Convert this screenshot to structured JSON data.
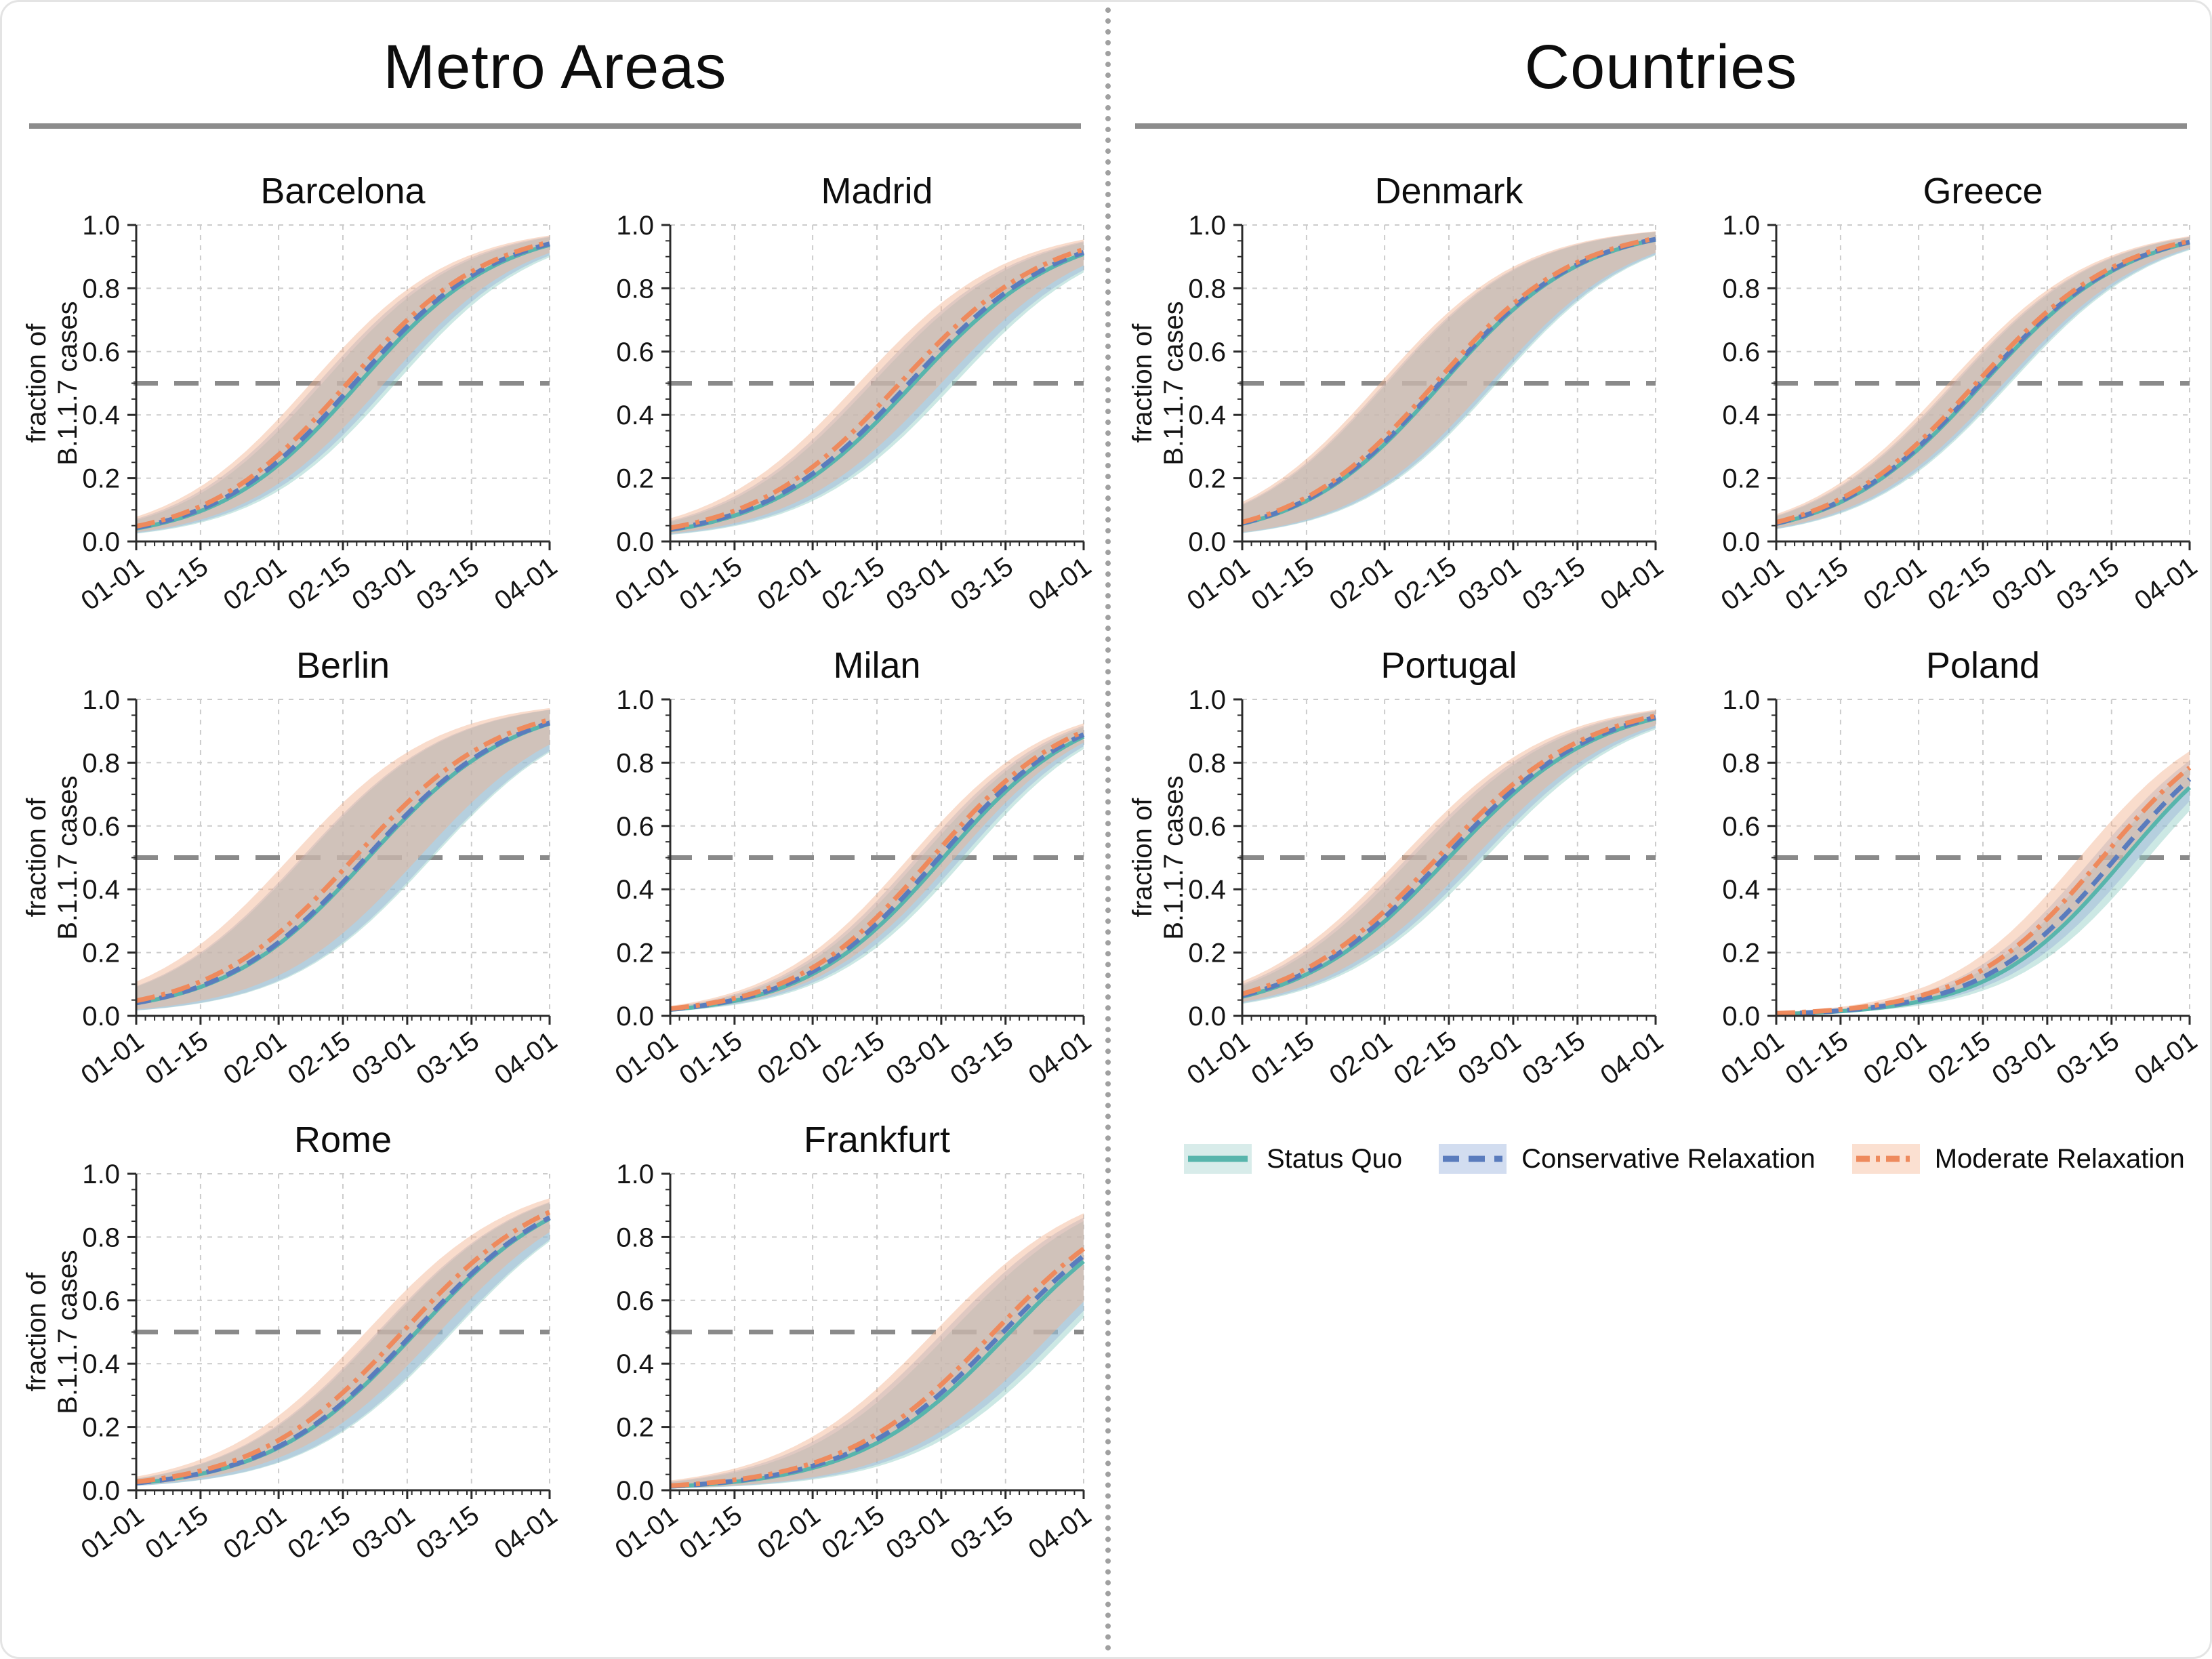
{
  "sections": [
    {
      "title": "Metro Areas"
    },
    {
      "title": "Countries"
    }
  ],
  "legend": [
    {
      "name": "Status Quo",
      "line_color": "#58b5ac",
      "band_color": "#d8ecea",
      "band_plot_color": "#8fcbc3",
      "style": "solid"
    },
    {
      "name": "Conservative Relaxation",
      "line_color": "#5a7cbd",
      "band_color": "#d2ddf0",
      "band_plot_color": "#9ab1d8",
      "style": "dashed"
    },
    {
      "name": "Moderate Relaxation",
      "line_color": "#ee8a5d",
      "band_color": "#fbe0d1",
      "band_plot_color": "#f2b28e",
      "style": "dashdot"
    }
  ],
  "axes": {
    "ylabel_lines": [
      "fraction of",
      "B.1.1.7 cases"
    ],
    "x_tick_labels": [
      "01-01",
      "01-15",
      "02-01",
      "02-15",
      "03-01",
      "03-15",
      "04-01"
    ],
    "x_tick_days": [
      0,
      14,
      31,
      45,
      59,
      73,
      90
    ],
    "x_range_days": [
      0,
      90
    ],
    "y_tick_labels": [
      "0.0",
      "0.2",
      "0.4",
      "0.6",
      "0.8",
      "1.0"
    ],
    "y_ticks": [
      0,
      0.2,
      0.4,
      0.6,
      0.8,
      1.0
    ],
    "ylim": [
      0,
      1
    ],
    "grid": true,
    "threshold_value": 0.5,
    "threshold_line_color": "#8a8a8a",
    "grid_color": "#cccccc",
    "spine_color": "#2b2b2b"
  },
  "chart_data": [
    {
      "id": "barcelona",
      "title": "Barcelona",
      "type": "line",
      "section": 0,
      "has_ylabel": true,
      "x": [
        "01-01",
        "01-15",
        "02-01",
        "02-15",
        "03-01",
        "03-15",
        "04-01"
      ],
      "band_delta_days": 8,
      "series": [
        {
          "name": "Status Quo",
          "k": 0.065,
          "t50": 48.5,
          "values_at_ticks": [
            0.04,
            0.1,
            0.24,
            0.44,
            0.66,
            0.83,
            0.94
          ]
        },
        {
          "name": "Conservative Relaxation",
          "k": 0.065,
          "t50": 47.5,
          "values_at_ticks": [
            0.04,
            0.1,
            0.26,
            0.46,
            0.68,
            0.84,
            0.94
          ]
        },
        {
          "name": "Moderate Relaxation",
          "k": 0.065,
          "t50": 46.0,
          "values_at_ticks": [
            0.05,
            0.11,
            0.27,
            0.48,
            0.7,
            0.85,
            0.95
          ]
        }
      ]
    },
    {
      "id": "madrid",
      "title": "Madrid",
      "type": "line",
      "section": 0,
      "has_ylabel": false,
      "x": [
        "01-01",
        "01-15",
        "02-01",
        "02-15",
        "03-01",
        "03-15",
        "04-01"
      ],
      "band_delta_days": 9,
      "series": [
        {
          "name": "Status Quo",
          "k": 0.062,
          "t50": 53.0,
          "values_at_ticks": [
            0.04,
            0.08,
            0.2,
            0.38,
            0.59,
            0.78,
            0.91
          ]
        },
        {
          "name": "Conservative Relaxation",
          "k": 0.062,
          "t50": 52.0,
          "values_at_ticks": [
            0.04,
            0.09,
            0.21,
            0.39,
            0.61,
            0.79,
            0.91
          ]
        },
        {
          "name": "Moderate Relaxation",
          "k": 0.062,
          "t50": 50.0,
          "values_at_ticks": [
            0.04,
            0.1,
            0.24,
            0.42,
            0.64,
            0.81,
            0.92
          ]
        }
      ]
    },
    {
      "id": "berlin",
      "title": "Berlin",
      "type": "line",
      "section": 0,
      "has_ylabel": true,
      "x": [
        "01-01",
        "01-15",
        "02-01",
        "02-15",
        "03-01",
        "03-15",
        "04-01"
      ],
      "band_delta_days": 14,
      "series": [
        {
          "name": "Status Quo",
          "k": 0.063,
          "t50": 50.5,
          "values_at_ticks": [
            0.04,
            0.09,
            0.23,
            0.41,
            0.63,
            0.8,
            0.92
          ]
        },
        {
          "name": "Conservative Relaxation",
          "k": 0.063,
          "t50": 50.0,
          "values_at_ticks": [
            0.04,
            0.09,
            0.23,
            0.42,
            0.64,
            0.81,
            0.93
          ]
        },
        {
          "name": "Moderate Relaxation",
          "k": 0.063,
          "t50": 47.5,
          "values_at_ticks": [
            0.05,
            0.11,
            0.26,
            0.46,
            0.67,
            0.83,
            0.93
          ]
        }
      ]
    },
    {
      "id": "milan",
      "title": "Milan",
      "type": "line",
      "section": 0,
      "has_ylabel": false,
      "x": [
        "01-01",
        "01-15",
        "02-01",
        "02-15",
        "03-01",
        "03-15",
        "04-01"
      ],
      "band_delta_days": 5,
      "series": [
        {
          "name": "Status Quo",
          "k": 0.066,
          "t50": 59.5,
          "values_at_ticks": [
            0.02,
            0.05,
            0.13,
            0.28,
            0.49,
            0.71,
            0.88
          ]
        },
        {
          "name": "Conservative Relaxation",
          "k": 0.066,
          "t50": 58.5,
          "values_at_ticks": [
            0.02,
            0.05,
            0.14,
            0.29,
            0.51,
            0.72,
            0.89
          ]
        },
        {
          "name": "Moderate Relaxation",
          "k": 0.066,
          "t50": 57.0,
          "values_at_ticks": [
            0.02,
            0.06,
            0.15,
            0.31,
            0.53,
            0.74,
            0.9
          ]
        }
      ]
    },
    {
      "id": "rome",
      "title": "Rome",
      "type": "line",
      "section": 0,
      "has_ylabel": true,
      "x": [
        "01-01",
        "01-15",
        "02-01",
        "02-15",
        "03-01",
        "03-15",
        "04-01"
      ],
      "band_delta_days": 8,
      "series": [
        {
          "name": "Status Quo",
          "k": 0.062,
          "t50": 61.0,
          "values_at_ticks": [
            0.02,
            0.05,
            0.13,
            0.27,
            0.47,
            0.68,
            0.85
          ]
        },
        {
          "name": "Conservative Relaxation",
          "k": 0.062,
          "t50": 60.5,
          "values_at_ticks": [
            0.02,
            0.05,
            0.14,
            0.28,
            0.48,
            0.68,
            0.86
          ]
        },
        {
          "name": "Moderate Relaxation",
          "k": 0.062,
          "t50": 58.0,
          "values_at_ticks": [
            0.03,
            0.06,
            0.16,
            0.31,
            0.52,
            0.72,
            0.88
          ]
        }
      ]
    },
    {
      "id": "frankfurt",
      "title": "Frankfurt",
      "type": "line",
      "section": 0,
      "has_ylabel": false,
      "x": [
        "01-01",
        "01-15",
        "02-01",
        "02-15",
        "03-01",
        "03-15",
        "04-01"
      ],
      "band_delta_days": 13,
      "series": [
        {
          "name": "Status Quo",
          "k": 0.06,
          "t50": 74.0,
          "values_at_ticks": [
            0.01,
            0.03,
            0.07,
            0.15,
            0.29,
            0.49,
            0.72
          ]
        },
        {
          "name": "Conservative Relaxation",
          "k": 0.06,
          "t50": 72.5,
          "values_at_ticks": [
            0.01,
            0.03,
            0.08,
            0.16,
            0.31,
            0.51,
            0.74
          ]
        },
        {
          "name": "Moderate Relaxation",
          "k": 0.06,
          "t50": 70.5,
          "values_at_ticks": [
            0.01,
            0.03,
            0.09,
            0.18,
            0.33,
            0.54,
            0.76
          ]
        }
      ]
    },
    {
      "id": "denmark",
      "title": "Denmark",
      "type": "line",
      "section": 1,
      "has_ylabel": true,
      "x": [
        "01-01",
        "01-15",
        "02-01",
        "02-15",
        "03-01",
        "03-15",
        "04-01"
      ],
      "band_delta_days": 12,
      "series": [
        {
          "name": "Status Quo",
          "k": 0.065,
          "t50": 43.5,
          "values_at_ticks": [
            0.06,
            0.13,
            0.31,
            0.52,
            0.73,
            0.87,
            0.95
          ]
        },
        {
          "name": "Conservative Relaxation",
          "k": 0.065,
          "t50": 43.0,
          "values_at_ticks": [
            0.06,
            0.13,
            0.31,
            0.53,
            0.74,
            0.88,
            0.95
          ]
        },
        {
          "name": "Moderate Relaxation",
          "k": 0.065,
          "t50": 42.0,
          "values_at_ticks": [
            0.06,
            0.14,
            0.33,
            0.55,
            0.75,
            0.88,
            0.96
          ]
        }
      ]
    },
    {
      "id": "greece",
      "title": "Greece",
      "type": "line",
      "section": 1,
      "has_ylabel": false,
      "x": [
        "01-01",
        "01-15",
        "02-01",
        "02-15",
        "03-01",
        "03-15",
        "04-01"
      ],
      "band_delta_days": 6,
      "series": [
        {
          "name": "Status Quo",
          "k": 0.063,
          "t50": 45.0,
          "values_at_ticks": [
            0.06,
            0.12,
            0.29,
            0.5,
            0.71,
            0.85,
            0.94
          ]
        },
        {
          "name": "Conservative Relaxation",
          "k": 0.063,
          "t50": 44.5,
          "values_at_ticks": [
            0.06,
            0.13,
            0.3,
            0.51,
            0.71,
            0.86,
            0.95
          ]
        },
        {
          "name": "Moderate Relaxation",
          "k": 0.063,
          "t50": 43.5,
          "values_at_ticks": [
            0.06,
            0.13,
            0.31,
            0.52,
            0.73,
            0.87,
            0.95
          ]
        }
      ]
    },
    {
      "id": "portugal",
      "title": "Portugal",
      "type": "line",
      "section": 1,
      "has_ylabel": true,
      "x": [
        "01-01",
        "01-15",
        "02-01",
        "02-15",
        "03-01",
        "03-15",
        "04-01"
      ],
      "band_delta_days": 8,
      "series": [
        {
          "name": "Status Quo",
          "k": 0.061,
          "t50": 45.0,
          "values_at_ticks": [
            0.06,
            0.13,
            0.3,
            0.5,
            0.7,
            0.85,
            0.94
          ]
        },
        {
          "name": "Conservative Relaxation",
          "k": 0.061,
          "t50": 44.0,
          "values_at_ticks": [
            0.06,
            0.14,
            0.31,
            0.52,
            0.71,
            0.85,
            0.94
          ]
        },
        {
          "name": "Moderate Relaxation",
          "k": 0.061,
          "t50": 42.5,
          "values_at_ticks": [
            0.07,
            0.15,
            0.33,
            0.54,
            0.73,
            0.87,
            0.95
          ]
        }
      ]
    },
    {
      "id": "poland",
      "title": "Poland",
      "type": "line",
      "section": 1,
      "has_ylabel": false,
      "x": [
        "01-01",
        "01-15",
        "02-01",
        "02-15",
        "03-01",
        "03-15",
        "04-01"
      ],
      "band_delta_days": 5,
      "series": [
        {
          "name": "Status Quo",
          "k": 0.068,
          "t50": 76.0,
          "values_at_ticks": [
            0.01,
            0.01,
            0.04,
            0.11,
            0.24,
            0.45,
            0.72
          ]
        },
        {
          "name": "Conservative Relaxation",
          "k": 0.068,
          "t50": 74.0,
          "values_at_ticks": [
            0.01,
            0.02,
            0.05,
            0.12,
            0.27,
            0.48,
            0.74
          ]
        },
        {
          "name": "Moderate Relaxation",
          "k": 0.068,
          "t50": 71.0,
          "values_at_ticks": [
            0.01,
            0.02,
            0.06,
            0.15,
            0.31,
            0.53,
            0.78
          ]
        }
      ]
    }
  ]
}
